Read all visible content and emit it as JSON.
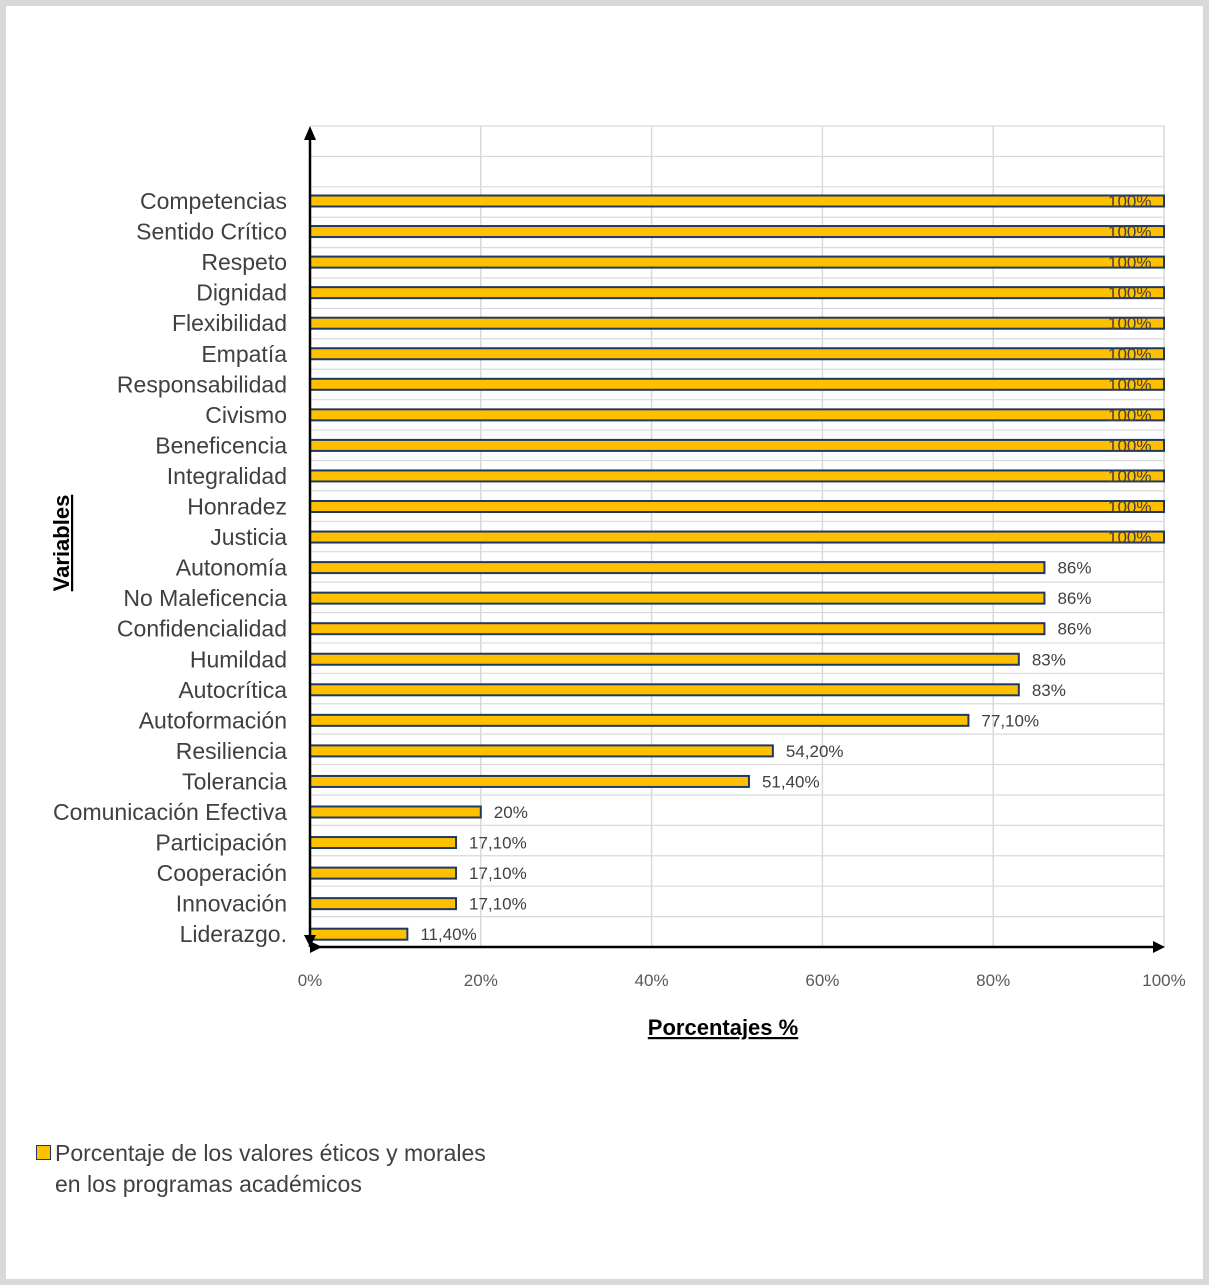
{
  "chart_data": {
    "type": "bar",
    "orientation": "horizontal",
    "categories": [
      "Competencias",
      "Sentido Crítico",
      "Respeto",
      "Dignidad",
      "Flexibilidad",
      "Empatía",
      "Responsabilidad",
      "Civismo",
      "Beneficencia",
      "Integralidad",
      "Honradez",
      "Justicia",
      "Autonomía",
      "No Maleficencia",
      "Confidencialidad",
      "Humildad",
      "Autocrítica",
      "Autoformación",
      "Resiliencia",
      "Tolerancia",
      "Comunicación Efectiva",
      "Participación",
      "Cooperación",
      "Innovación",
      "Liderazgo."
    ],
    "series": [
      {
        "name": "Porcentaje de los valores éticos y morales en los programas académicos",
        "values": [
          100,
          100,
          100,
          100,
          100,
          100,
          100,
          100,
          100,
          100,
          100,
          100,
          86,
          86,
          86,
          83,
          83,
          77.1,
          54.2,
          51.4,
          20,
          17.1,
          17.1,
          17.1,
          11.4
        ],
        "data_labels": [
          "100%",
          "100%",
          "100%",
          "100%",
          "100%",
          "100%",
          "100%",
          "100%",
          "100%",
          "100%",
          "100%",
          "100%",
          "86%",
          "86%",
          "86%",
          "83%",
          "83%",
          "77,10%",
          "54,20%",
          "51,40%",
          "20%",
          "17,10%",
          "17,10%",
          "17,10%",
          "11,40%"
        ]
      }
    ],
    "xlabel": "Porcentajes %",
    "ylabel": "Variables",
    "xlim": [
      0,
      100
    ],
    "xticks": [
      "0%",
      "20%",
      "40%",
      "60%",
      "80%",
      "100%"
    ],
    "grid": true,
    "legend_position": "bottom-left",
    "colors": {
      "bar_fill": "#ffc000",
      "bar_edge": "#203864",
      "grid": "#d9d9d9",
      "axis": "#000000"
    }
  },
  "legend": {
    "line1": "Porcentaje de los valores éticos y morales",
    "line2": "en los programas académicos"
  }
}
